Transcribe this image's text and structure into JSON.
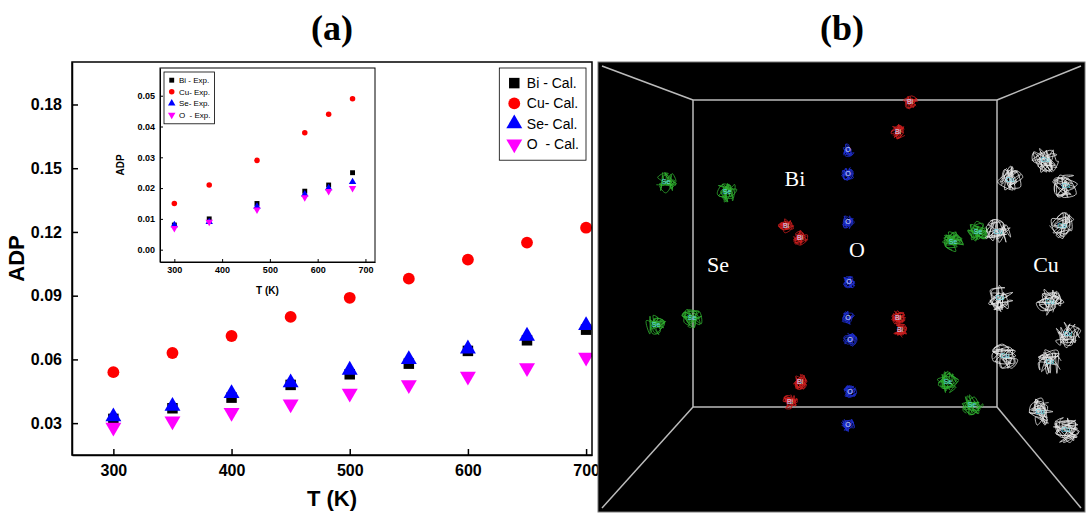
{
  "panel_labels": [
    "(a)",
    "(b)"
  ],
  "chart_data": [
    {
      "type": "scatter",
      "x_label": "T (K)",
      "y_label": "ADP",
      "x": [
        300,
        350,
        400,
        450,
        500,
        550,
        600,
        650,
        700
      ],
      "xlim": [
        265,
        705
      ],
      "xticks": [
        300,
        400,
        500,
        600,
        700
      ],
      "ylim": [
        0.015,
        0.2
      ],
      "yticks": [
        0.03,
        0.06,
        0.09,
        0.12,
        0.15,
        0.18
      ],
      "legend": "upper right",
      "series": [
        {
          "name": "Bi - Cal.",
          "color": "#000000",
          "marker": "square",
          "values": [
            0.032,
            0.037,
            0.042,
            0.048,
            0.053,
            0.058,
            0.064,
            0.069,
            0.074
          ]
        },
        {
          "name": "Cu- Cal.",
          "color": "#ff0000",
          "marker": "circle",
          "values": [
            0.054,
            0.063,
            0.071,
            0.08,
            0.089,
            0.098,
            0.107,
            0.115,
            0.122
          ]
        },
        {
          "name": "Se- Cal.",
          "color": "#0000ff",
          "marker": "triangle-up",
          "values": [
            0.033,
            0.038,
            0.044,
            0.049,
            0.055,
            0.06,
            0.065,
            0.071,
            0.076
          ]
        },
        {
          "name": "O  - Cal.",
          "color": "#ff00ff",
          "marker": "triangle-down",
          "values": [
            0.028,
            0.031,
            0.035,
            0.039,
            0.044,
            0.048,
            0.052,
            0.056,
            0.061
          ]
        }
      ]
    },
    {
      "type": "scatter",
      "x_label": "T (K)",
      "y_label": "ADP",
      "x": [
        300,
        373,
        473,
        573,
        623,
        673
      ],
      "xlim": [
        270,
        720
      ],
      "xticks": [
        300,
        400,
        500,
        600,
        700
      ],
      "ylim": [
        -0.004,
        0.059
      ],
      "yticks": [
        {
          "value": 0,
          "label": "0.00"
        },
        0.01,
        0.02,
        0.03,
        0.04,
        0.05
      ],
      "legend": "upper left",
      "series": [
        {
          "name": "Bi - Exp.",
          "color": "#000000",
          "marker": "square",
          "values": [
            0.008,
            0.01,
            0.015,
            0.019,
            0.021,
            0.025
          ]
        },
        {
          "name": "Cu- Exp.",
          "color": "#ff0000",
          "marker": "circle",
          "values": [
            0.015,
            0.021,
            0.029,
            0.038,
            0.044,
            0.049
          ]
        },
        {
          "name": "Se- Exp.",
          "color": "#0000ff",
          "marker": "triangle-up",
          "values": [
            0.008,
            0.009,
            0.014,
            0.018,
            0.02,
            0.022
          ]
        },
        {
          "name": "O  - Exp.",
          "color": "#ff00ff",
          "marker": "triangle-down",
          "values": [
            0.007,
            0.009,
            0.013,
            0.017,
            0.019,
            0.02
          ]
        }
      ]
    }
  ],
  "diagram": {
    "labels": [
      "Bi",
      "O",
      "Se",
      "Cu"
    ]
  }
}
